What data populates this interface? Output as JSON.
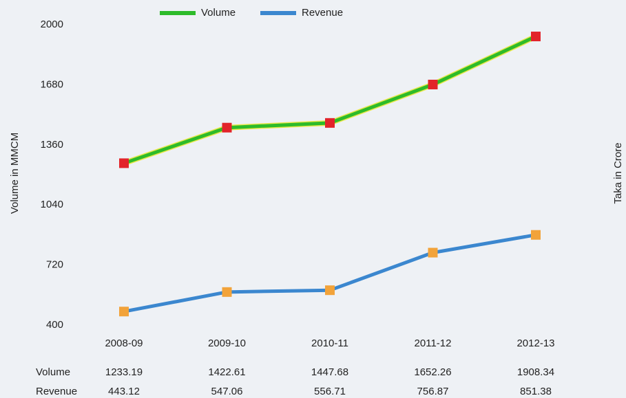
{
  "chart_data": {
    "type": "line",
    "categories": [
      "2008-09",
      "2009-10",
      "2010-11",
      "2011-12",
      "2012-13"
    ],
    "series": [
      {
        "name": "Volume",
        "color": "#2dbb2a",
        "marker_color": "#e2242a",
        "values": [
          1233.19,
          1422.61,
          1447.68,
          1652.26,
          1908.34
        ]
      },
      {
        "name": "Revenue",
        "color": "#3b87cf",
        "marker_color": "#f2a33a",
        "values": [
          443.12,
          547.06,
          556.71,
          756.87,
          851.38
        ]
      }
    ],
    "ylabel": "Volume in MMCM",
    "y2label": "Taka in Crore",
    "ylim": [
      400,
      2000
    ],
    "yticks": [
      400,
      720,
      1040,
      1360,
      1680,
      2000
    ],
    "grid": false,
    "legend": "top"
  }
}
